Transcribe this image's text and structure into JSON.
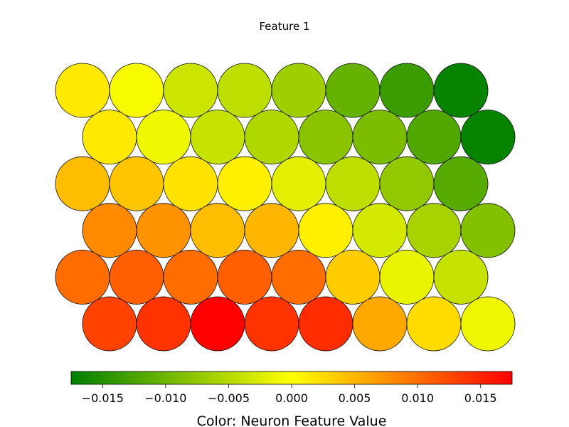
{
  "chart_data": {
    "type": "heatmap",
    "layout": "hexagonal",
    "title": "Feature 1",
    "colorbar": {
      "label": "Color: Neuron Feature Value",
      "min": -0.0175,
      "max": 0.0175,
      "colors": [
        "#007f00",
        "#ffff00",
        "#ff0000"
      ],
      "ticks": [
        -0.015,
        -0.01,
        -0.005,
        0.0,
        0.005,
        0.01,
        0.015
      ],
      "tick_labels": [
        "−0.015",
        "−0.010",
        "−0.005",
        "0.000",
        "0.005",
        "0.010",
        "0.015"
      ]
    },
    "rows": [
      [
        0.0015,
        -0.0005,
        -0.0035,
        -0.0045,
        -0.0065,
        -0.0105,
        -0.0135,
        -0.017
      ],
      [
        0.0015,
        -0.001,
        -0.004,
        -0.0055,
        -0.008,
        -0.009,
        -0.012,
        -0.017
      ],
      [
        0.0045,
        0.004,
        0.002,
        0.001,
        -0.002,
        -0.0045,
        -0.0075,
        -0.0115
      ],
      [
        0.008,
        0.0075,
        0.0045,
        0.005,
        0.001,
        -0.003,
        -0.006,
        -0.0085
      ],
      [
        0.01,
        0.011,
        0.01,
        0.011,
        0.01,
        0.0035,
        -0.0015,
        -0.004
      ],
      [
        0.013,
        0.014,
        0.0175,
        0.014,
        0.0145,
        0.006,
        0.0025,
        -0.001
      ]
    ]
  }
}
